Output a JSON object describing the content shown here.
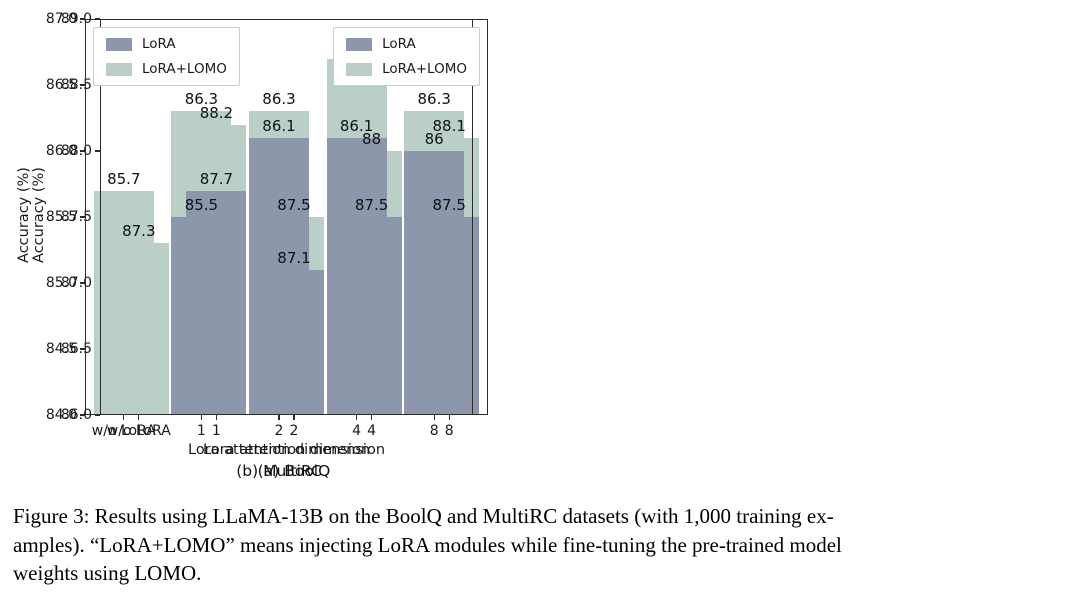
{
  "figure": {
    "caption_lines": [
      "Figure 3: Results using LLaMA-13B on the BoolQ and MultiRC datasets (with 1,000 training ex-",
      "amples). “LoRA+LOMO” means injecting LoRA modules while fine-tuning the pre-trained model",
      "weights using LOMO."
    ]
  },
  "colors": {
    "lora": "#8c97ac",
    "lora_lomo": "#bad0c6",
    "axis": "#2b2b2b",
    "text": "#1a1a1a",
    "legend_border": "#cccccc",
    "background": "#ffffff"
  },
  "chart_data": [
    {
      "type": "bar",
      "subtitle": "(a) BoolQ",
      "xlabel": "Lora attention dimension",
      "ylabel": "Accuracy (%)",
      "ylim": [
        86.0,
        89.0
      ],
      "ytick_step": 0.5,
      "grid": false,
      "legend_position": "upper right",
      "categories": [
        "w/o LoRA",
        "1",
        "2",
        "4",
        "8"
      ],
      "series": [
        {
          "name": "LoRA",
          "color_key": "lora",
          "values": [
            null,
            87.7,
            87.1,
            87.5,
            87.5
          ],
          "labels": [
            null,
            "87.7",
            "87.1",
            "87.5",
            "87.5"
          ]
        },
        {
          "name": "LoRA+LOMO",
          "color_key": "lora_lomo",
          "values": [
            87.3,
            88.2,
            87.5,
            88.0,
            88.1
          ],
          "labels": [
            "87.3",
            "88.2",
            "87.5",
            "88",
            "88.1"
          ]
        }
      ]
    },
    {
      "type": "bar",
      "subtitle": "(b) MultiRC",
      "xlabel": "Lora attention dimension",
      "ylabel": "Accuracy (%)",
      "ylim": [
        84.0,
        87.0
      ],
      "ytick_step": 0.5,
      "grid": false,
      "legend_position": "upper left",
      "categories": [
        "w/o LoRA",
        "1",
        "2",
        "4",
        "8"
      ],
      "series": [
        {
          "name": "LoRA",
          "color_key": "lora",
          "values": [
            null,
            85.5,
            86.1,
            86.1,
            86.0
          ],
          "labels": [
            null,
            "85.5",
            "86.1",
            "86.1",
            "86"
          ]
        },
        {
          "name": "LoRA+LOMO",
          "color_key": "lora_lomo",
          "values": [
            85.7,
            86.3,
            86.3,
            86.7,
            86.3
          ],
          "labels": [
            "85.7",
            "86.3",
            "86.3",
            "86.7",
            "86.3"
          ]
        }
      ]
    }
  ]
}
